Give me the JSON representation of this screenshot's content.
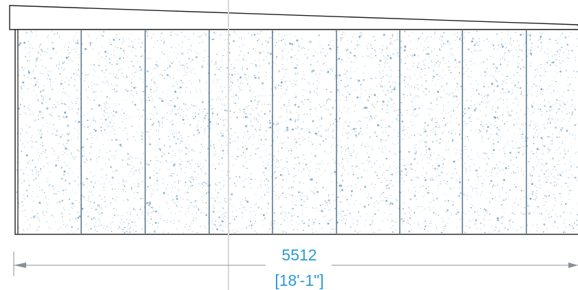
{
  "dimension": {
    "metric": "5512",
    "imperial": "[18'-1\"]"
  },
  "colors": {
    "outline": "#1c1c1c",
    "panel_seam": "#5c7c94",
    "stipple": "#7aa5c6",
    "dimension_text": "#2a9bd6",
    "dimension_line": "#8a8f96",
    "fold_crease": "#d8d8d8",
    "background": "#ffffff"
  }
}
